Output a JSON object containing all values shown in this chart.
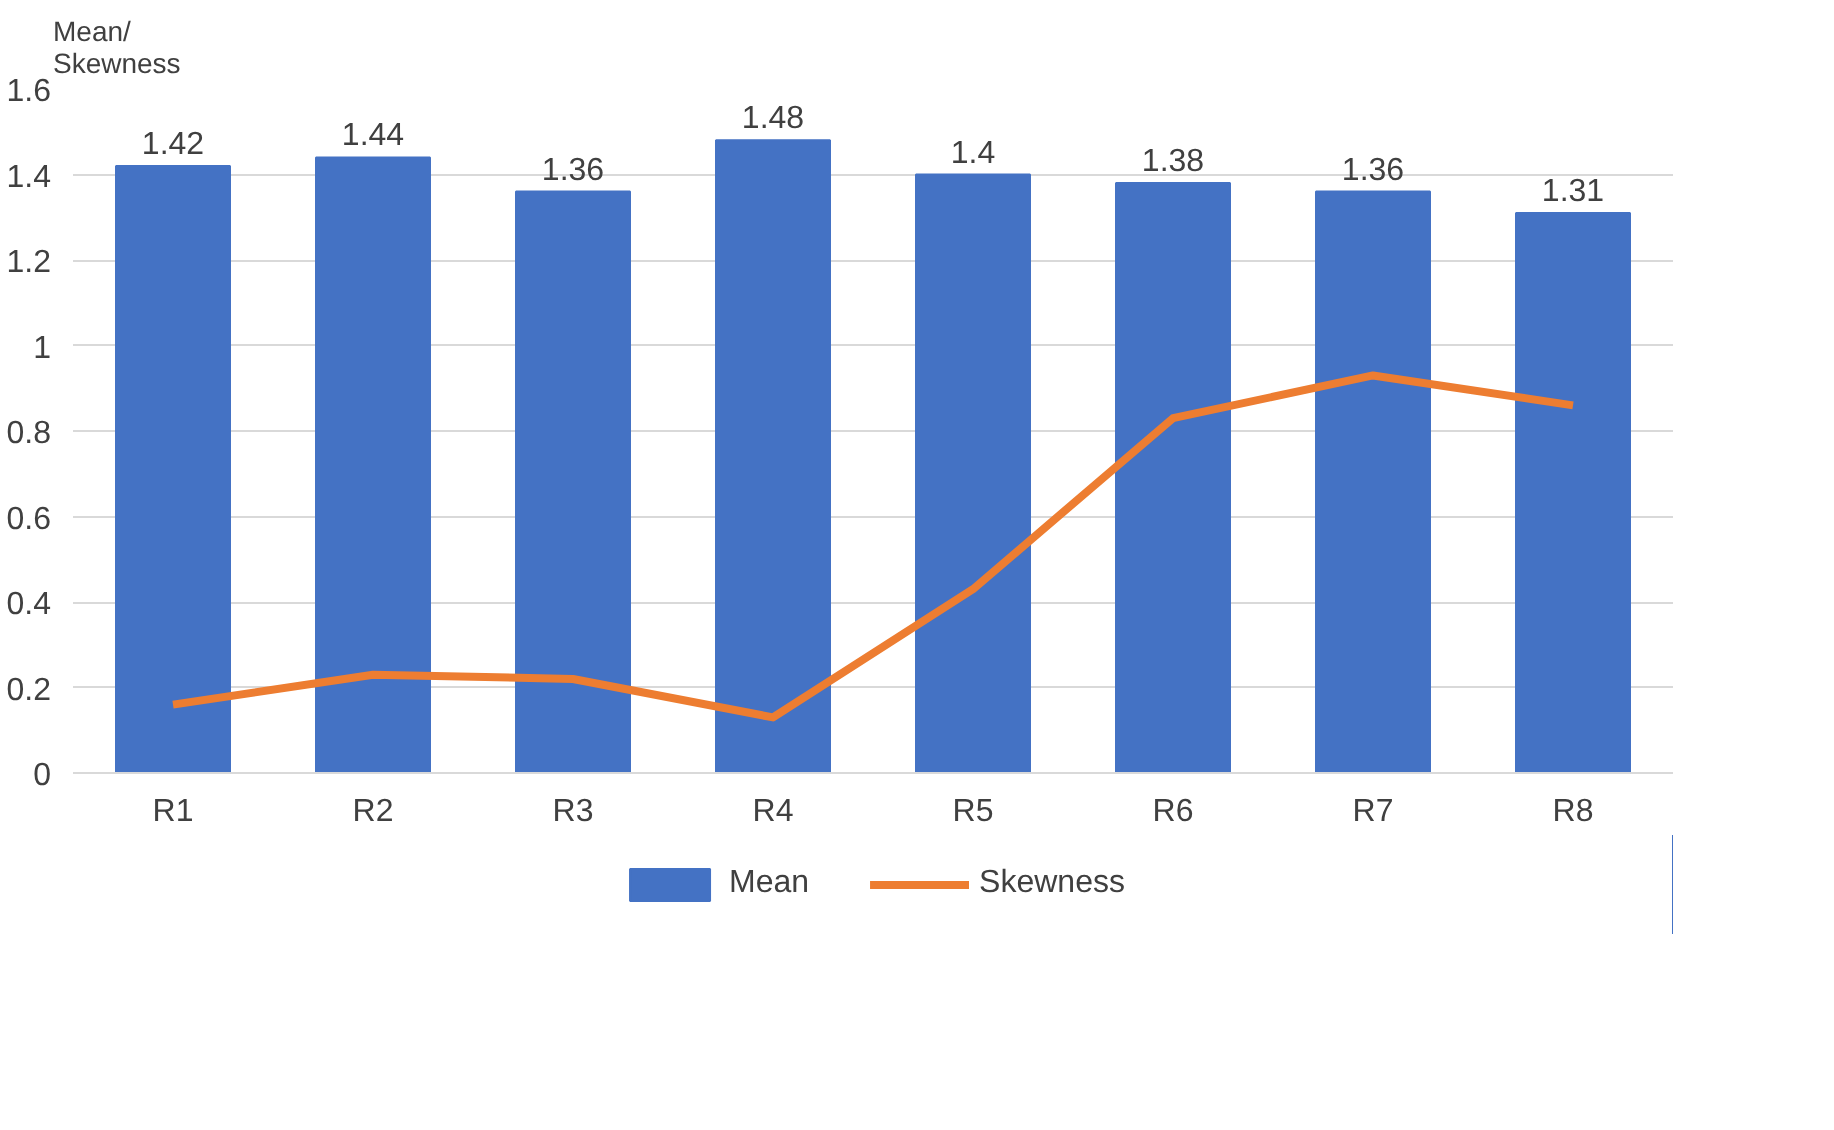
{
  "chart_data": {
    "type": "bar",
    "ylabel": "Mean/\nSkewness",
    "categories": [
      "R1",
      "R2",
      "R3",
      "R4",
      "R5",
      "R6",
      "R7",
      "R8"
    ],
    "series": [
      {
        "name": "Mean",
        "color": "#4472c4",
        "values": [
          1.42,
          1.44,
          1.36,
          1.48,
          1.4,
          1.38,
          1.36,
          1.31
        ],
        "value_labels": [
          "1.42",
          "1.44",
          "1.36",
          "1.48",
          "1.4",
          "1.38",
          "1.36",
          "1.31"
        ]
      },
      {
        "name": "Skewness",
        "type": "line",
        "color": "#ed7d31",
        "values": [
          0.16,
          0.23,
          0.22,
          0.13,
          0.43,
          0.83,
          0.93,
          0.86
        ]
      }
    ],
    "ylim": [
      0,
      1.6
    ],
    "yticks": [
      0,
      0.2,
      0.4,
      0.6,
      0.8,
      1,
      1.2,
      1.4,
      1.6
    ],
    "grid": "y",
    "legend": "bottom",
    "marker": "none",
    "line_style": "solid"
  }
}
